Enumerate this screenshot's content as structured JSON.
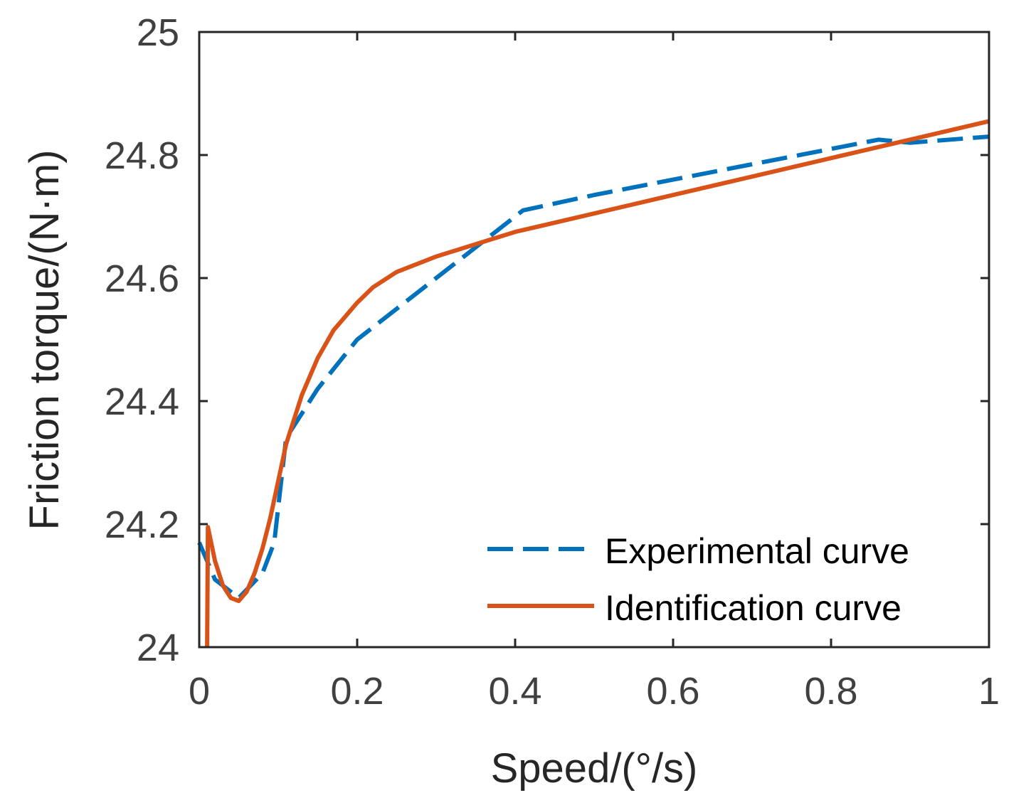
{
  "chart_data": {
    "type": "line",
    "title": "",
    "xlabel": "Speed/(°/s)",
    "ylabel": "Friction torque/(N·m)",
    "xlim": [
      0,
      1
    ],
    "ylim": [
      24,
      25
    ],
    "xticks": [
      0,
      0.2,
      0.4,
      0.6,
      0.8,
      1
    ],
    "xtick_labels": [
      "0",
      "0.2",
      "0.4",
      "0.6",
      "0.8",
      "1"
    ],
    "yticks": [
      24,
      24.2,
      24.4,
      24.6,
      24.8,
      25
    ],
    "ytick_labels": [
      "24",
      "24.2",
      "24.4",
      "24.6",
      "24.8",
      "25"
    ],
    "grid": false,
    "legend_position": "bottom-right",
    "series": [
      {
        "name": "Experimental curve",
        "color": "#0072BD",
        "style": "dashed",
        "x": [
          0,
          0.02,
          0.05,
          0.08,
          0.095,
          0.11,
          0.15,
          0.2,
          0.25,
          0.3,
          0.35,
          0.41,
          0.5,
          0.6,
          0.7,
          0.8,
          0.86,
          0.9,
          1.0
        ],
        "y": [
          24.17,
          24.11,
          24.08,
          24.12,
          24.17,
          24.34,
          24.42,
          24.5,
          24.55,
          24.6,
          24.65,
          24.71,
          24.735,
          24.76,
          24.785,
          24.81,
          24.825,
          24.82,
          24.83
        ]
      },
      {
        "name": "Identification curve",
        "color": "#D95319",
        "style": "solid",
        "x": [
          0.01,
          0.011,
          0.02,
          0.03,
          0.04,
          0.05,
          0.06,
          0.07,
          0.08,
          0.09,
          0.1,
          0.11,
          0.12,
          0.13,
          0.15,
          0.17,
          0.19,
          0.2,
          0.22,
          0.25,
          0.28,
          0.3,
          0.35,
          0.4,
          0.5,
          0.6,
          0.7,
          0.8,
          0.9,
          1.0
        ],
        "y": [
          24.0,
          24.195,
          24.14,
          24.1,
          24.08,
          24.075,
          24.09,
          24.12,
          24.16,
          24.21,
          24.27,
          24.33,
          24.37,
          24.41,
          24.47,
          24.515,
          24.545,
          24.56,
          24.585,
          24.61,
          24.625,
          24.635,
          24.655,
          24.675,
          24.705,
          24.735,
          24.765,
          24.795,
          24.825,
          24.855
        ]
      }
    ]
  }
}
